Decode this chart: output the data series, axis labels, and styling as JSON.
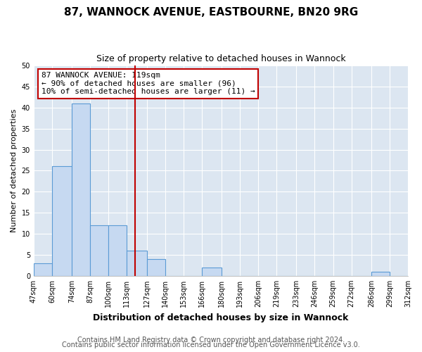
{
  "title": "87, WANNOCK AVENUE, EASTBOURNE, BN20 9RG",
  "subtitle": "Size of property relative to detached houses in Wannock",
  "xlabel": "Distribution of detached houses by size in Wannock",
  "ylabel": "Number of detached properties",
  "bin_edges": [
    47,
    60,
    74,
    87,
    100,
    113,
    127,
    140,
    153,
    166,
    180,
    193,
    206,
    219,
    233,
    246,
    259,
    272,
    286,
    299,
    312
  ],
  "bin_counts": [
    3,
    26,
    41,
    12,
    12,
    6,
    4,
    0,
    0,
    2,
    0,
    0,
    0,
    0,
    0,
    0,
    0,
    0,
    1,
    0
  ],
  "bar_color": "#c6d9f1",
  "bar_edge_color": "#5b9bd5",
  "vline_x": 119,
  "vline_color": "#c00000",
  "annotation_title": "87 WANNOCK AVENUE: 119sqm",
  "annotation_line1": "← 90% of detached houses are smaller (96)",
  "annotation_line2": "10% of semi-detached houses are larger (11) →",
  "annotation_box_color": "#c00000",
  "ylim": [
    0,
    50
  ],
  "yticks": [
    0,
    5,
    10,
    15,
    20,
    25,
    30,
    35,
    40,
    45,
    50
  ],
  "tick_labels": [
    "47sqm",
    "60sqm",
    "74sqm",
    "87sqm",
    "100sqm",
    "113sqm",
    "127sqm",
    "140sqm",
    "153sqm",
    "166sqm",
    "180sqm",
    "193sqm",
    "206sqm",
    "219sqm",
    "233sqm",
    "246sqm",
    "259sqm",
    "272sqm",
    "286sqm",
    "299sqm",
    "312sqm"
  ],
  "footnote1": "Contains HM Land Registry data © Crown copyright and database right 2024.",
  "footnote2": "Contains public sector information licensed under the Open Government Licence v3.0.",
  "fig_bg_color": "#ffffff",
  "plot_bg_color": "#dce6f1",
  "grid_color": "#ffffff",
  "title_fontsize": 11,
  "subtitle_fontsize": 9,
  "axis_label_fontsize": 9,
  "tick_fontsize": 7,
  "footnote_fontsize": 7,
  "ylabel_fontsize": 8
}
